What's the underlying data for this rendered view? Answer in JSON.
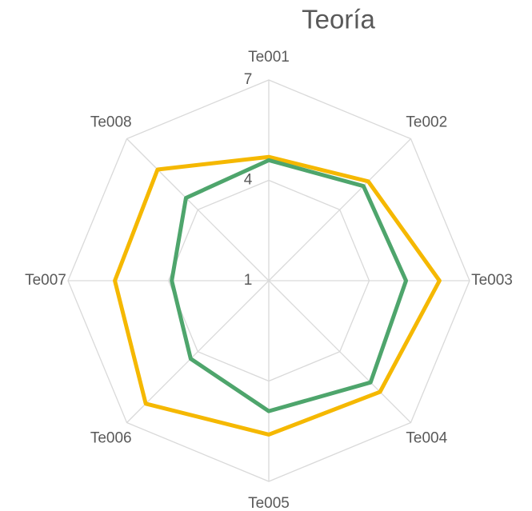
{
  "chart_data": {
    "type": "radar",
    "title": "Teoría",
    "categories": [
      "Te001",
      "Te002",
      "Te003",
      "Te004",
      "Te005",
      "Te006",
      "Te007",
      "Te008"
    ],
    "series": [
      {
        "color": "#f5b800",
        "values": [
          4.7,
          5.2,
          6.1,
          5.7,
          5.6,
          6.2,
          5.6,
          5.7
        ]
      },
      {
        "color": "#4ea56c",
        "values": [
          4.6,
          5.0,
          5.1,
          5.3,
          4.9,
          4.3,
          3.9,
          4.5
        ]
      }
    ],
    "ylim": [
      1,
      7
    ],
    "yticks": [
      1,
      4,
      7
    ],
    "grid": true
  }
}
